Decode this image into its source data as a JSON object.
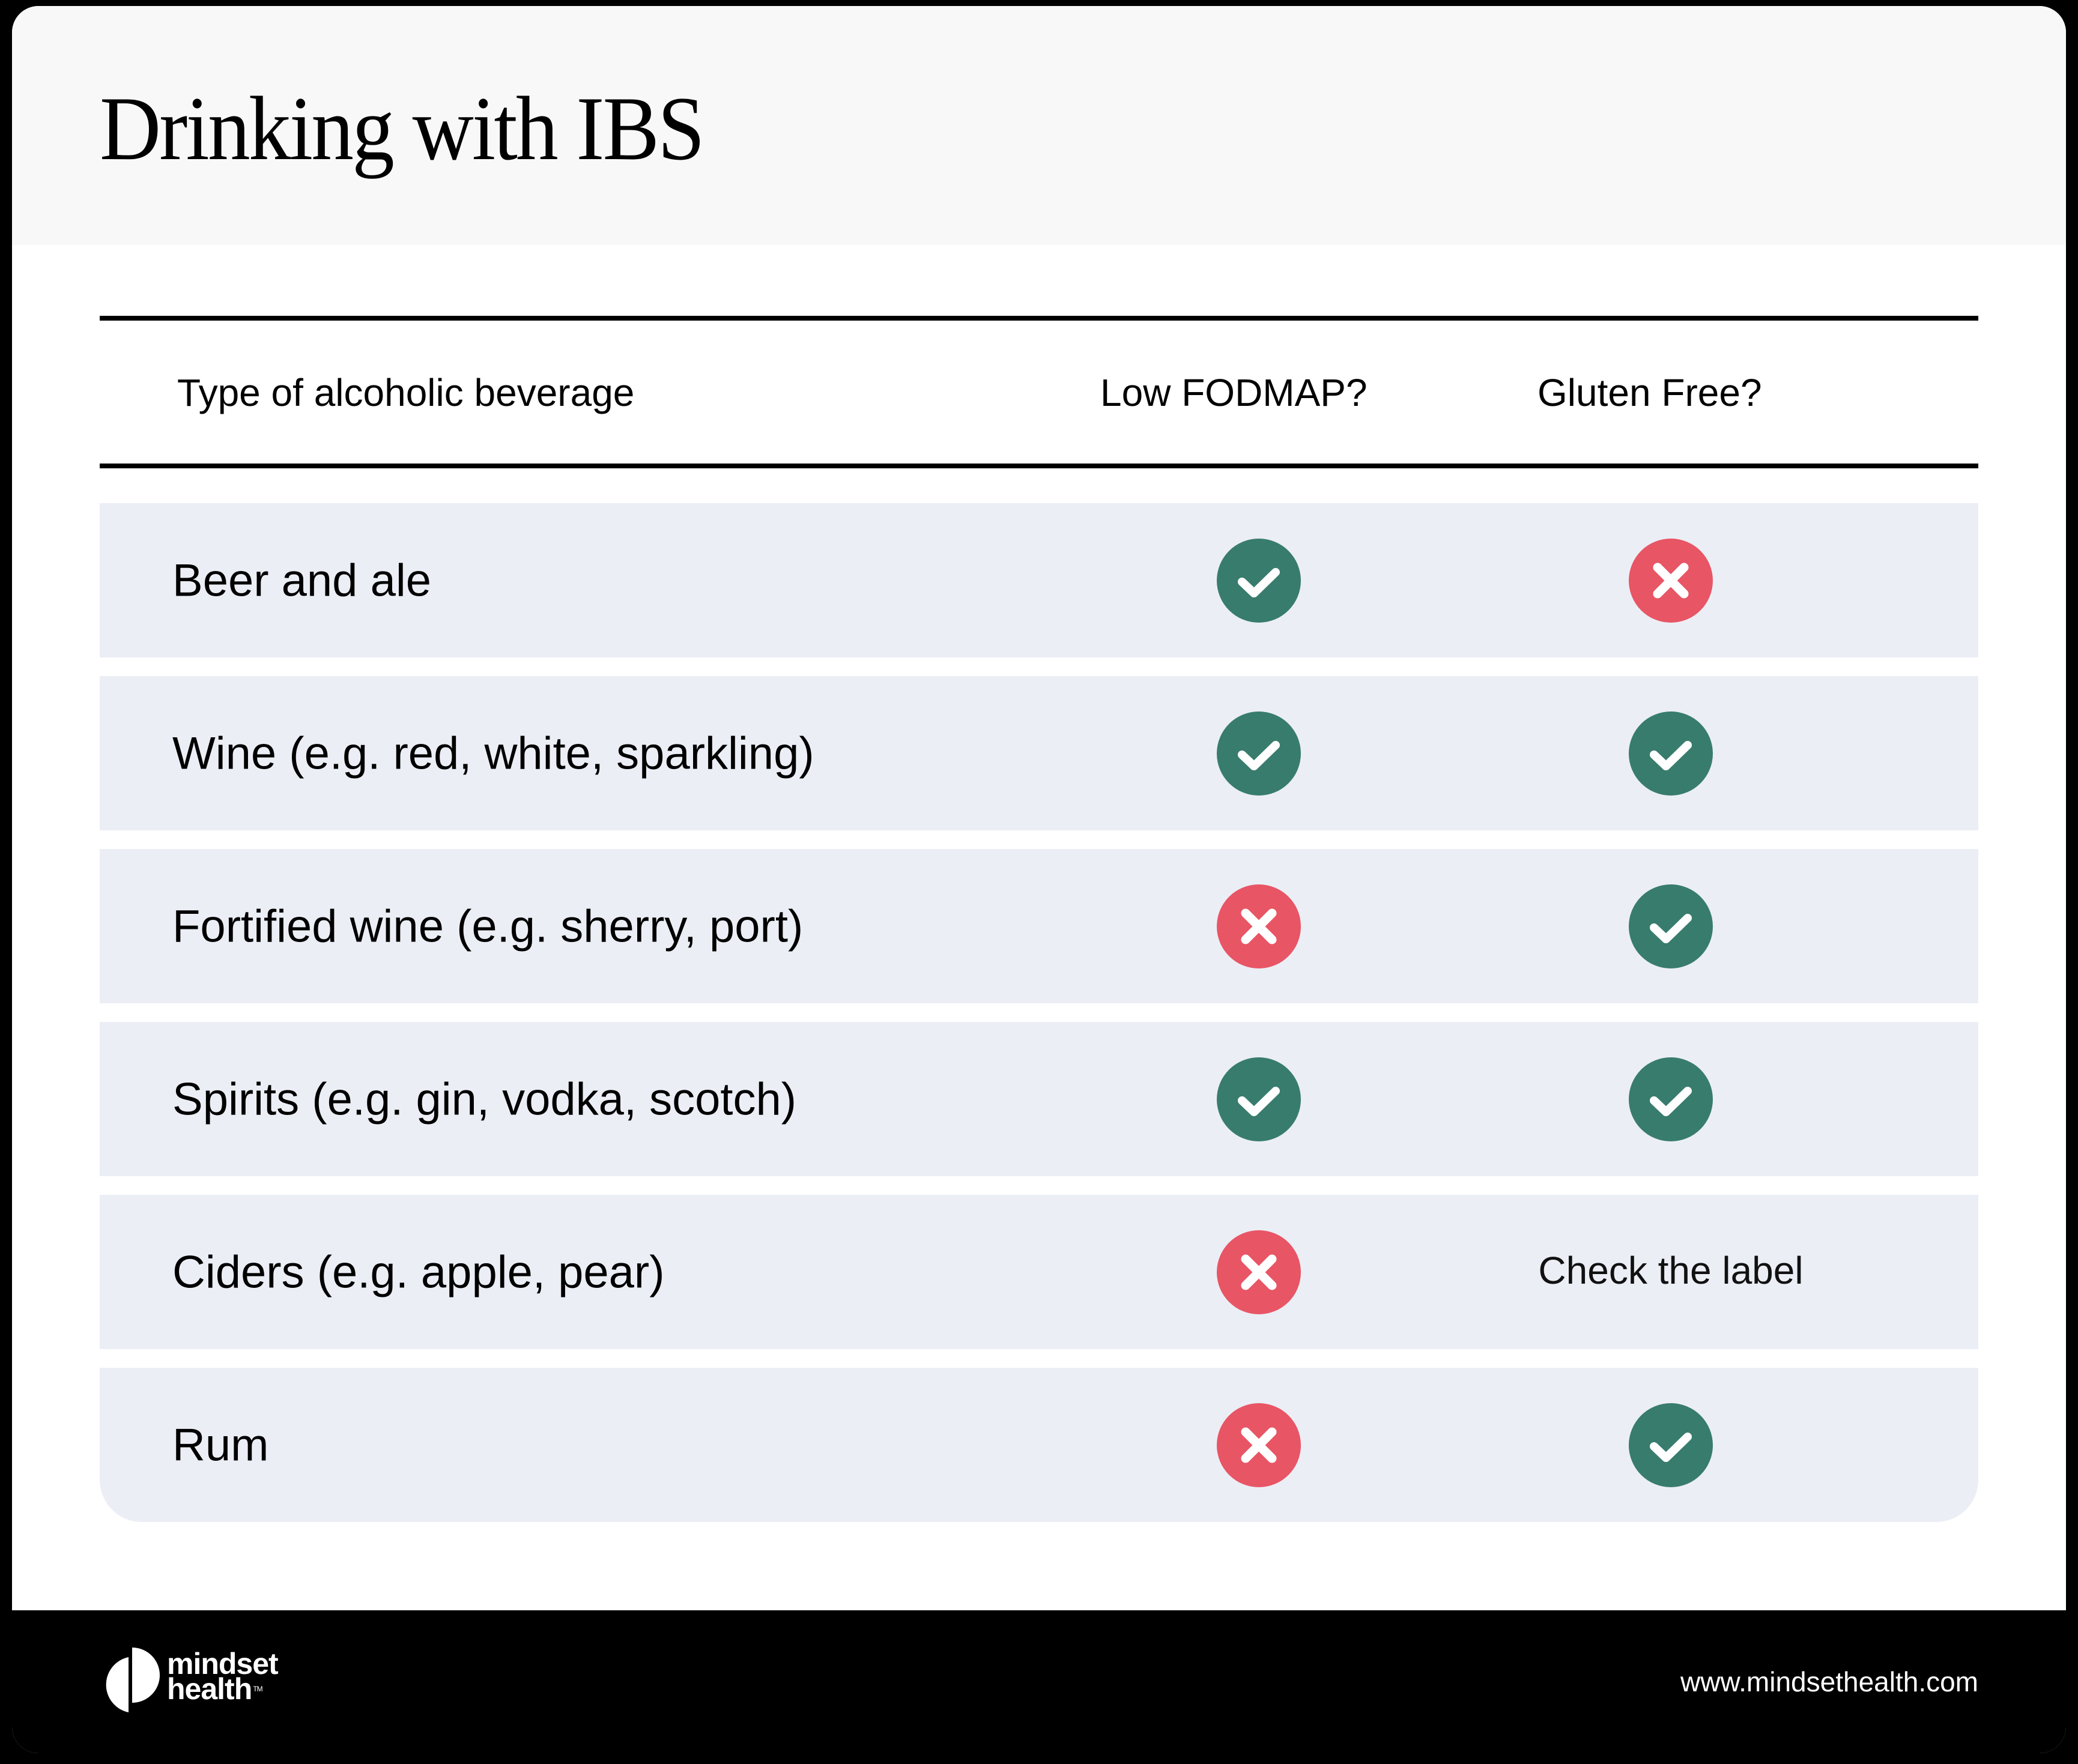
{
  "title": "Drinking with IBS",
  "table": {
    "headers": {
      "beverage": "Type of alcoholic beverage",
      "low_fodmap": "Low FODMAP?",
      "gluten_free": "Gluten Free?"
    },
    "rows": [
      {
        "label": "Beer and ale",
        "low_fodmap": "yes",
        "gluten_free": "no",
        "gluten_free_text": ""
      },
      {
        "label": "Wine (e.g. red, white, sparkling)",
        "low_fodmap": "yes",
        "gluten_free": "yes",
        "gluten_free_text": ""
      },
      {
        "label": "Fortified wine (e.g. sherry, port)",
        "low_fodmap": "no",
        "gluten_free": "yes",
        "gluten_free_text": ""
      },
      {
        "label": "Spirits (e.g. gin, vodka, scotch)",
        "low_fodmap": "yes",
        "gluten_free": "yes",
        "gluten_free_text": ""
      },
      {
        "label": "Ciders (e.g. apple, pear)",
        "low_fodmap": "no",
        "gluten_free": "text",
        "gluten_free_text": "Check the label"
      },
      {
        "label": "Rum",
        "low_fodmap": "no",
        "gluten_free": "yes",
        "gluten_free_text": ""
      }
    ]
  },
  "icons": {
    "yes": "check-circle-icon",
    "no": "x-circle-icon"
  },
  "colors": {
    "yes": "#387c6d",
    "no": "#e85565",
    "row_bg": "#ebeef5",
    "header_bg": "#f8f8f8"
  },
  "footer": {
    "brand_line1": "mindset",
    "brand_line2": "health",
    "trademark": "TM",
    "url": "www.mindsethealth.com"
  }
}
